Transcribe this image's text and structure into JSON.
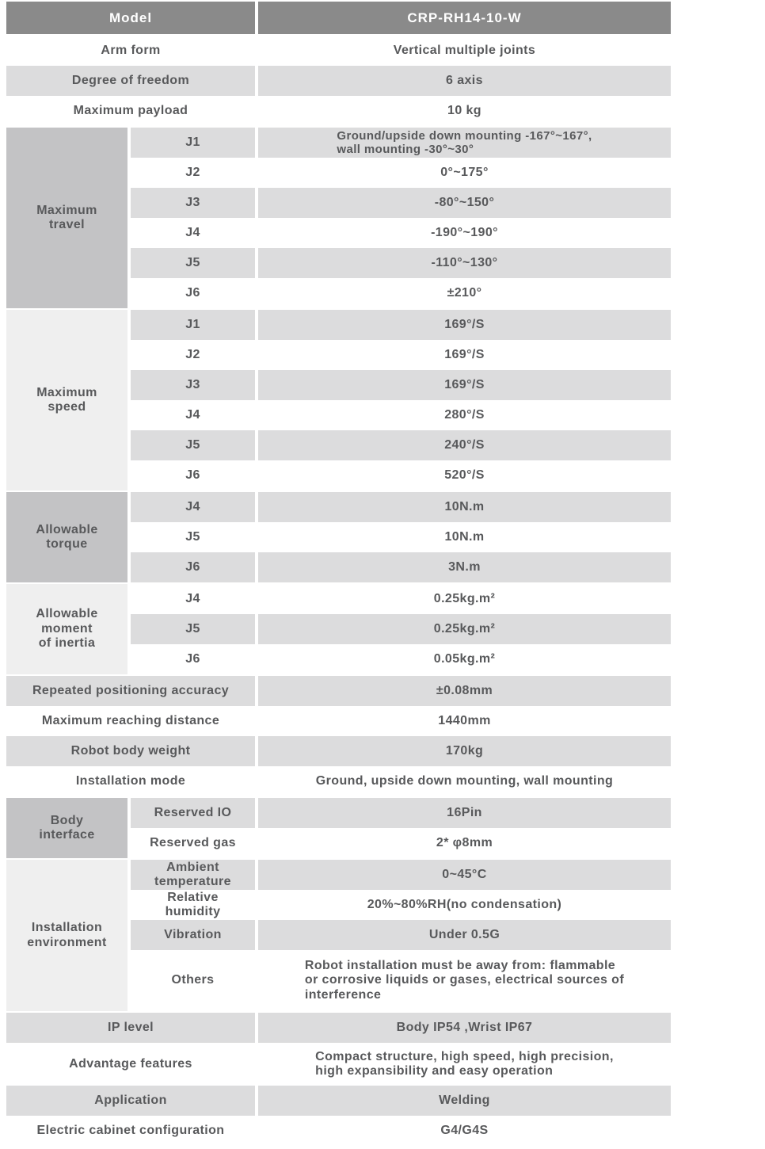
{
  "colors": {
    "header_bg": "#8a8a8a",
    "header_text": "#ffffff",
    "row_gray": "#dcdcdd",
    "group_dark": "#c3c3c5",
    "group_light": "#efefef",
    "text": "#58595b",
    "page_bg": "#ffffff"
  },
  "title_row": {
    "label": "Model",
    "value": "CRP-RH14-10-W"
  },
  "top_rows": [
    {
      "label": "Arm form",
      "value": "Vertical multiple joints"
    },
    {
      "label": "Degree of freedom",
      "value": "6 axis"
    },
    {
      "label": "Maximum payload",
      "value": "10 kg"
    }
  ],
  "groups": {
    "travel": {
      "label": "Maximum\ntravel",
      "rows": [
        {
          "joint": "J1",
          "value": "Ground/upside down mounting -167°~167°,\nwall mounting -30°~30°"
        },
        {
          "joint": "J2",
          "value": "0°~175°"
        },
        {
          "joint": "J3",
          "value": "-80°~150°"
        },
        {
          "joint": "J4",
          "value": "-190°~190°"
        },
        {
          "joint": "J5",
          "value": "-110°~130°"
        },
        {
          "joint": "J6",
          "value": "±210°"
        }
      ]
    },
    "speed": {
      "label": "Maximum\nspeed",
      "rows": [
        {
          "joint": "J1",
          "value": "169°/S"
        },
        {
          "joint": "J2",
          "value": "169°/S"
        },
        {
          "joint": "J3",
          "value": "169°/S"
        },
        {
          "joint": "J4",
          "value": "280°/S"
        },
        {
          "joint": "J5",
          "value": "240°/S"
        },
        {
          "joint": "J6",
          "value": "520°/S"
        }
      ]
    },
    "torque": {
      "label": "Allowable\ntorque",
      "rows": [
        {
          "joint": "J4",
          "value": "10N.m"
        },
        {
          "joint": "J5",
          "value": "10N.m"
        },
        {
          "joint": "J6",
          "value": "3N.m"
        }
      ]
    },
    "inertia": {
      "label": "Allowable\nmoment\nof inertia",
      "rows": [
        {
          "joint": "J4",
          "value": "0.25kg.m²"
        },
        {
          "joint": "J5",
          "value": "0.25kg.m²"
        },
        {
          "joint": "J6",
          "value": "0.05kg.m²"
        }
      ]
    },
    "body_interface": {
      "label": "Body\ninterface",
      "rows": [
        {
          "joint": "Reserved IO",
          "value": "16Pin"
        },
        {
          "joint": "Reserved gas",
          "value": "2* φ8mm"
        }
      ]
    },
    "environment": {
      "label": "Installation\nenvironment",
      "rows": [
        {
          "joint": "Ambient\ntemperature",
          "value": "0~45°C"
        },
        {
          "joint": "Relative\nhumidity",
          "value": "20%~80%RH(no condensation)"
        },
        {
          "joint": "Vibration",
          "value": "Under 0.5G"
        },
        {
          "joint": "Others",
          "value": "Robot installation must be away from: flammable\nor corrosive liquids or gases, electrical sources of\ninterference"
        }
      ]
    }
  },
  "mid_rows": [
    {
      "label": "Repeated positioning accuracy",
      "value": "±0.08mm"
    },
    {
      "label": "Maximum reaching distance",
      "value": "1440mm"
    },
    {
      "label": "Robot body weight",
      "value": "170kg"
    },
    {
      "label": "Installation mode",
      "value": "Ground, upside down mounting, wall mounting"
    }
  ],
  "bottom_rows": [
    {
      "label": "IP level",
      "value": "Body IP54 ,Wrist IP67"
    },
    {
      "label": "Advantage features",
      "value": "Compact structure, high speed, high precision,\nhigh expansibility and easy operation"
    },
    {
      "label": "Application",
      "value": "Welding"
    },
    {
      "label": "Electric cabinet configuration",
      "value": "G4/G4S"
    }
  ]
}
